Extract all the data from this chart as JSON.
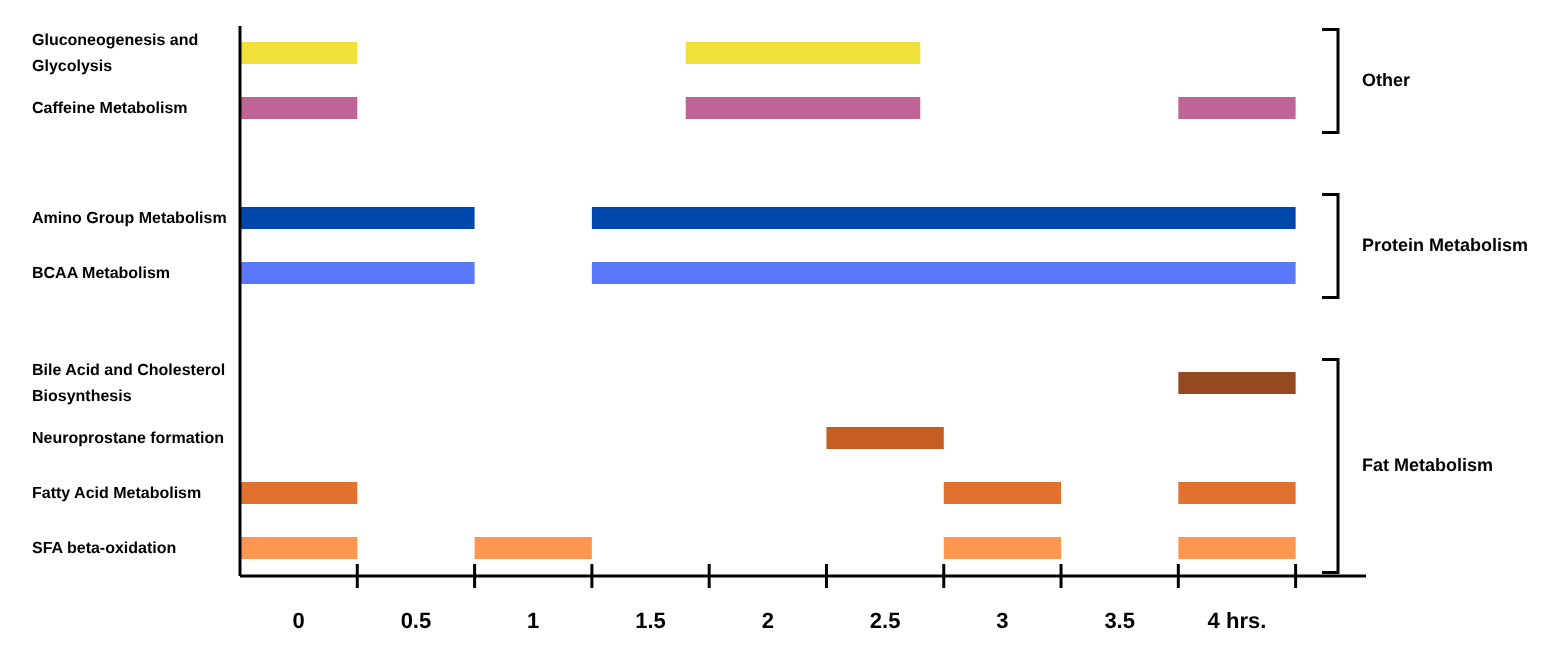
{
  "chart_data": {
    "type": "bar",
    "orientation": "horizontal",
    "categories": [
      "Gluconeogenesis and Glycolysis",
      "Caffeine Metabolism",
      null,
      "Amino Group Metabolism",
      "BCAA Metabolism",
      null,
      "Bile Acid and Cholesterol Biosynthesis",
      "Neuroprostane formation",
      "Fatty Acid Metabolism",
      "SFA beta-oxidation"
    ],
    "series": [
      {
        "values": [
          0.5,
          0.5,
          null,
          1,
          1,
          null,
          null,
          null,
          0.5,
          0.5
        ],
        "base": [
          -0.25,
          -0.25,
          null,
          -0.25,
          -0.25,
          null,
          null,
          null,
          -0.25,
          -0.25
        ],
        "colors": [
          "#efe03a",
          "#c06496",
          "#ffffff",
          "#0047ab",
          "#5b78fa",
          "#ffffff",
          "#94491f",
          "#c65d22",
          "#e0712e",
          "#ff9650"
        ]
      },
      {
        "values": [
          1,
          1,
          null,
          3,
          3,
          null,
          null,
          0.5,
          0.5,
          0.5
        ],
        "base": [
          1.65,
          1.65,
          null,
          1.25,
          1.25,
          null,
          null,
          2.25,
          2.75,
          0.75
        ],
        "colors": [
          "#efe03a",
          "#c06496",
          "#ffffff",
          "#0047ab",
          "#5b78fa",
          "#ffffff",
          "#94491f",
          "#c65d22",
          "#e0712e",
          "#ff9650"
        ]
      },
      {
        "values": [
          null,
          0.5,
          null,
          null,
          null,
          null,
          0.5,
          null,
          0.5,
          0.5
        ],
        "base": [
          null,
          3.75,
          null,
          null,
          null,
          null,
          3.75,
          null,
          3.75,
          2.75
        ],
        "colors": [
          "#efe03a",
          "#c06496",
          "#ffffff",
          "#0047ab",
          "#5b78fa",
          "#ffffff",
          "#94491f",
          "#c65d22",
          "#e0712e",
          "#ff9650"
        ]
      },
      {
        "values": [
          null,
          null,
          null,
          null,
          null,
          null,
          null,
          null,
          null,
          0.5
        ],
        "base": [
          null,
          null,
          null,
          null,
          null,
          null,
          null,
          null,
          null,
          3.75
        ],
        "colors": [
          "#efe03a",
          "#c06496",
          "#ffffff",
          "#0047ab",
          "#5b78fa",
          "#ffffff",
          "#94491f",
          "#c65d22",
          "#e0712e",
          "#ff9650"
        ]
      }
    ],
    "xlim": [
      -0.25,
      4.55
    ],
    "xticks": [
      {
        "value": 0,
        "label": "0"
      },
      {
        "value": 0.25,
        "label": null
      },
      {
        "value": 0.5,
        "label": "0.5"
      },
      {
        "value": 0.75,
        "label": null
      },
      {
        "value": 1,
        "label": "1"
      },
      {
        "value": 1.25,
        "label": null
      },
      {
        "value": 1.5,
        "label": "1.5"
      },
      {
        "value": 1.75,
        "label": null
      },
      {
        "value": 2,
        "label": "2"
      },
      {
        "value": 2.25,
        "label": null
      },
      {
        "value": 2.5,
        "label": "2.5"
      },
      {
        "value": 2.75,
        "label": null
      },
      {
        "value": 3,
        "label": "3"
      },
      {
        "value": 3.25,
        "label": null
      },
      {
        "value": 3.5,
        "label": "3.5"
      },
      {
        "value": 3.75,
        "label": null
      },
      {
        "value": 4,
        "label": "4 hrs."
      },
      {
        "value": 4.25,
        "label": null
      }
    ],
    "annotations": [
      "Other",
      "Protein Metabolism",
      "Fat Metabolism"
    ]
  }
}
